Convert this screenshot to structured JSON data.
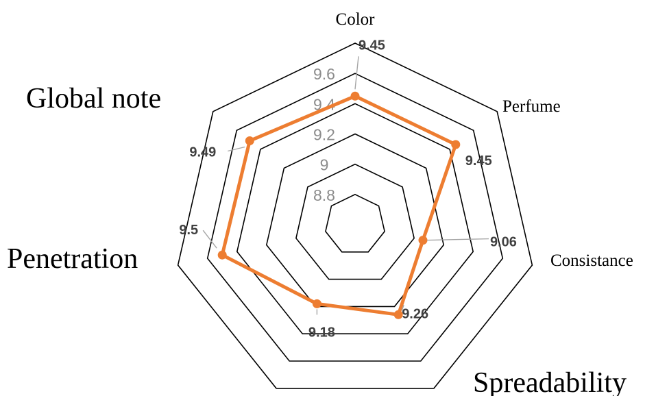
{
  "chart_data": {
    "type": "radar",
    "categories": [
      "Color",
      "Perfume",
      "Consistance",
      "Spreadability",
      "",
      "Penetration",
      "Global note"
    ],
    "series": [
      {
        "values": [
          9.45,
          9.45,
          9.06,
          9.26,
          9.18,
          9.5,
          9.49
        ],
        "color": "#ed7d31"
      }
    ],
    "data_labels": [
      "9.45",
      "9.45",
      "9.06",
      "9.26",
      "9.18",
      "9.5",
      "9.49"
    ],
    "rlim": [
      8.6,
      9.8
    ],
    "ticks": [
      "8.8",
      "9",
      "9.2",
      "9.4",
      "9.6"
    ],
    "tick_values": [
      8.8,
      9.0,
      9.2,
      9.4,
      9.6
    ],
    "grid_values": [
      8.8,
      9.0,
      9.2,
      9.4,
      9.6,
      9.8
    ],
    "grid": true
  }
}
